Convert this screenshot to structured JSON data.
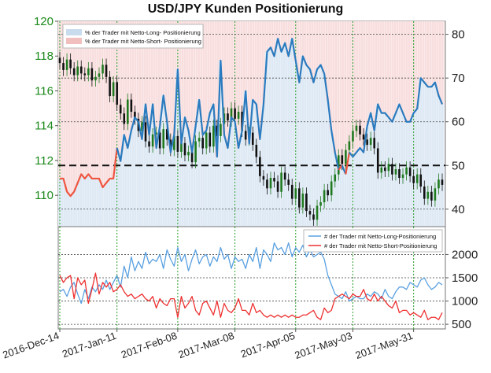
{
  "chart_data": [
    {
      "type": "candlestick+area",
      "title": "USD/JPY Kunden Positionierung",
      "legend": {
        "placement": "top-left",
        "entries": [
          {
            "label": "% der Trader mit Netto-Long- Positionierung",
            "color": "#c9dcee"
          },
          {
            "label": "% der Trader mit Netto-Short- Positionierung",
            "color": "#f2bfbf"
          }
        ]
      },
      "y_left": {
        "range": [
          108.2,
          120
        ],
        "ticks": [
          "110",
          "112",
          "114",
          "116",
          "118",
          "120"
        ],
        "color": "#1c8a1c"
      },
      "y_right": {
        "range": [
          36,
          83
        ],
        "ticks": [
          "40",
          "50",
          "60",
          "70",
          "80"
        ]
      },
      "reference_line": 50,
      "candles_close": [
        117.6,
        117.2,
        117.8,
        117.3,
        116.9,
        117.4,
        117.0,
        116.9,
        117.3,
        116.6,
        116.8,
        117.0,
        117.5,
        116.8,
        115.7,
        116.5,
        115.2,
        114.7,
        114.1,
        115.5,
        114.8,
        114.4,
        113.7,
        114.2,
        113.1,
        112.8,
        113.5,
        113.6,
        112.7,
        113.8,
        113.2,
        112.6,
        113.4,
        112.5,
        113.0,
        112.3,
        112.5,
        111.9,
        113.1,
        113.3,
        112.7,
        113.6,
        112.8,
        114.0,
        113.4,
        114.1,
        114.7,
        114.3,
        115.0,
        114.4,
        114.8,
        113.7,
        113.2,
        113.6,
        112.9,
        112.2,
        111.1,
        110.9,
        110.4,
        111.0,
        110.8,
        110.2,
        111.3,
        110.9,
        110.6,
        109.8,
        110.4,
        109.3,
        110.1,
        109.1,
        108.9,
        108.6,
        109.4,
        109.6,
        110.3,
        110.0,
        110.8,
        111.2,
        112.3,
        111.8,
        112.6,
        113.1,
        113.7,
        114.0,
        113.5,
        113.2,
        112.9,
        113.3,
        112.7,
        111.3,
        111.6,
        111.4,
        111.8,
        111.2,
        111.5,
        111.0,
        111.2,
        111.6,
        111.1,
        110.7,
        111.2,
        110.5,
        109.8,
        110.2,
        109.7,
        110.4,
        110.9,
        110.6
      ],
      "long_pct": [
        47,
        47,
        44,
        43,
        44,
        46,
        48,
        47,
        48,
        47,
        47,
        47,
        45,
        46,
        47,
        47,
        54,
        51,
        57,
        54,
        58,
        61,
        60,
        56,
        64,
        57,
        64,
        54,
        59,
        66,
        60,
        53,
        57,
        72,
        55,
        61,
        58,
        53,
        59,
        65,
        57,
        58,
        62,
        64,
        52,
        74,
        57,
        54,
        61,
        60,
        54,
        58,
        67,
        55,
        65,
        64,
        56,
        64,
        76,
        77,
        75,
        79,
        76,
        78,
        75,
        79,
        74,
        69,
        75,
        73,
        72,
        69,
        72,
        73,
        71,
        65,
        58,
        53,
        49,
        50,
        48,
        53,
        52,
        53,
        54,
        53,
        59,
        62,
        58,
        64,
        62,
        62,
        61,
        60,
        62,
        64,
        62,
        60,
        60,
        62,
        63,
        70,
        69,
        68,
        68,
        69,
        66,
        64
      ],
      "series": []
    },
    {
      "type": "line",
      "legend": {
        "placement": "top-right",
        "entries": [
          {
            "label": "# der Trader mit Netto-Long-Positionierung",
            "color": "#5aa0e0"
          },
          {
            "label": "# der Trader mit Netto-Short-Positionierung",
            "color": "#ee3030"
          }
        ]
      },
      "y_right": {
        "range": [
          400,
          2600
        ],
        "ticks": [
          "500",
          "1000",
          "1500",
          "2000"
        ]
      },
      "x_ticks": [
        "2016-Dec-14",
        "2017-Jan-11",
        "2017-Feb-08",
        "2017-Mar-08",
        "2017-Apr-05",
        "2017-May-03",
        "2017-May-31"
      ],
      "series": [
        {
          "name": "# der Trader mit Netto-Long-Positionierung",
          "color": "#5aa0e0",
          "values": [
            1200,
            1250,
            1100,
            1300,
            1400,
            1150,
            950,
            1250,
            1050,
            1300,
            1200,
            1350,
            1250,
            1450,
            1250,
            1400,
            1550,
            1300,
            1750,
            1500,
            1950,
            1650,
            1850,
            1700,
            2050,
            1800,
            1900,
            1850,
            2000,
            1700,
            2100,
            1900,
            1750,
            2150,
            1850,
            2000,
            1650,
            1900,
            2100,
            1800,
            1950,
            2000,
            1750,
            1950,
            1850,
            2150,
            1900,
            2000,
            1700,
            1950,
            1850,
            1900,
            1700,
            2000,
            1850,
            2150,
            1700,
            2100,
            2000,
            1850,
            2250,
            2100,
            2150,
            2000,
            2250,
            1950,
            2150,
            2050,
            2200,
            1950,
            2100,
            1950,
            2000,
            2050,
            1900,
            1550,
            1350,
            1150,
            1100,
            1050,
            1200,
            1000,
            1050,
            1100,
            1050,
            1050,
            1150,
            1100,
            1200,
            1150,
            1050,
            1250,
            1100,
            1050,
            1200,
            1300,
            1300,
            1250,
            1400,
            1350,
            1300,
            1450,
            1500,
            1350,
            1250,
            1300,
            1400,
            1350
          ]
        },
        {
          "name": "# der Trader mit Netto-Short-Positionierung",
          "color": "#ee3030",
          "values": [
            1550,
            1400,
            1500,
            1550,
            1050,
            1500,
            1350,
            1450,
            950,
            1250,
            1600,
            1150,
            1400,
            1300,
            1400,
            1200,
            1250,
            1350,
            1200,
            1100,
            1150,
            1050,
            1100,
            1150,
            1050,
            1000,
            1100,
            850,
            1050,
            950,
            900,
            1050,
            1050,
            650,
            1100,
            850,
            950,
            1100,
            800,
            700,
            950,
            1000,
            850,
            700,
            1000,
            650,
            950,
            800,
            750,
            850,
            1050,
            800,
            800,
            700,
            950,
            750,
            800,
            700,
            650,
            700,
            650,
            700,
            650,
            700,
            650,
            700,
            650,
            650,
            700,
            700,
            750,
            800,
            650,
            600,
            850,
            750,
            800,
            1050,
            1100,
            1150,
            1100,
            1050,
            1150,
            1100,
            1100,
            1250,
            1050,
            1000,
            1150,
            1000,
            1100,
            1000,
            900,
            850,
            1000,
            750,
            800,
            800,
            700,
            750,
            700,
            650,
            800,
            600,
            650,
            650,
            600,
            750
          ]
        }
      ]
    }
  ]
}
